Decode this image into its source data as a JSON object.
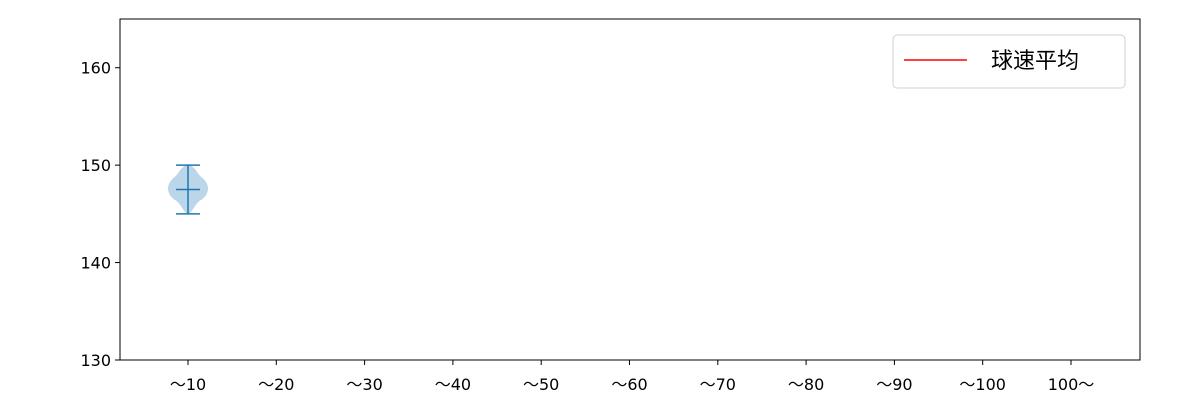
{
  "chart_data": {
    "type": "violin",
    "title": "",
    "xlabel": "",
    "ylabel": "",
    "categories": [
      "～10",
      "～20",
      "～30",
      "～40",
      "～50",
      "～60",
      "～70",
      "～80",
      "～90",
      "～100",
      "100～"
    ],
    "ylim": [
      130,
      165
    ],
    "yticks": [
      130,
      140,
      150,
      160
    ],
    "grid": false,
    "series": [
      {
        "category": "～10",
        "min": 145,
        "max": 150,
        "mean": 147.5
      }
    ],
    "legend": {
      "position": "top-right",
      "entries": [
        {
          "label": "球速平均",
          "color": "#ff0000"
        }
      ]
    },
    "colors": {
      "violin_fill": "#1f77b4",
      "violin_line": "#1f77b4",
      "mean_legend": "#ff0000"
    }
  }
}
